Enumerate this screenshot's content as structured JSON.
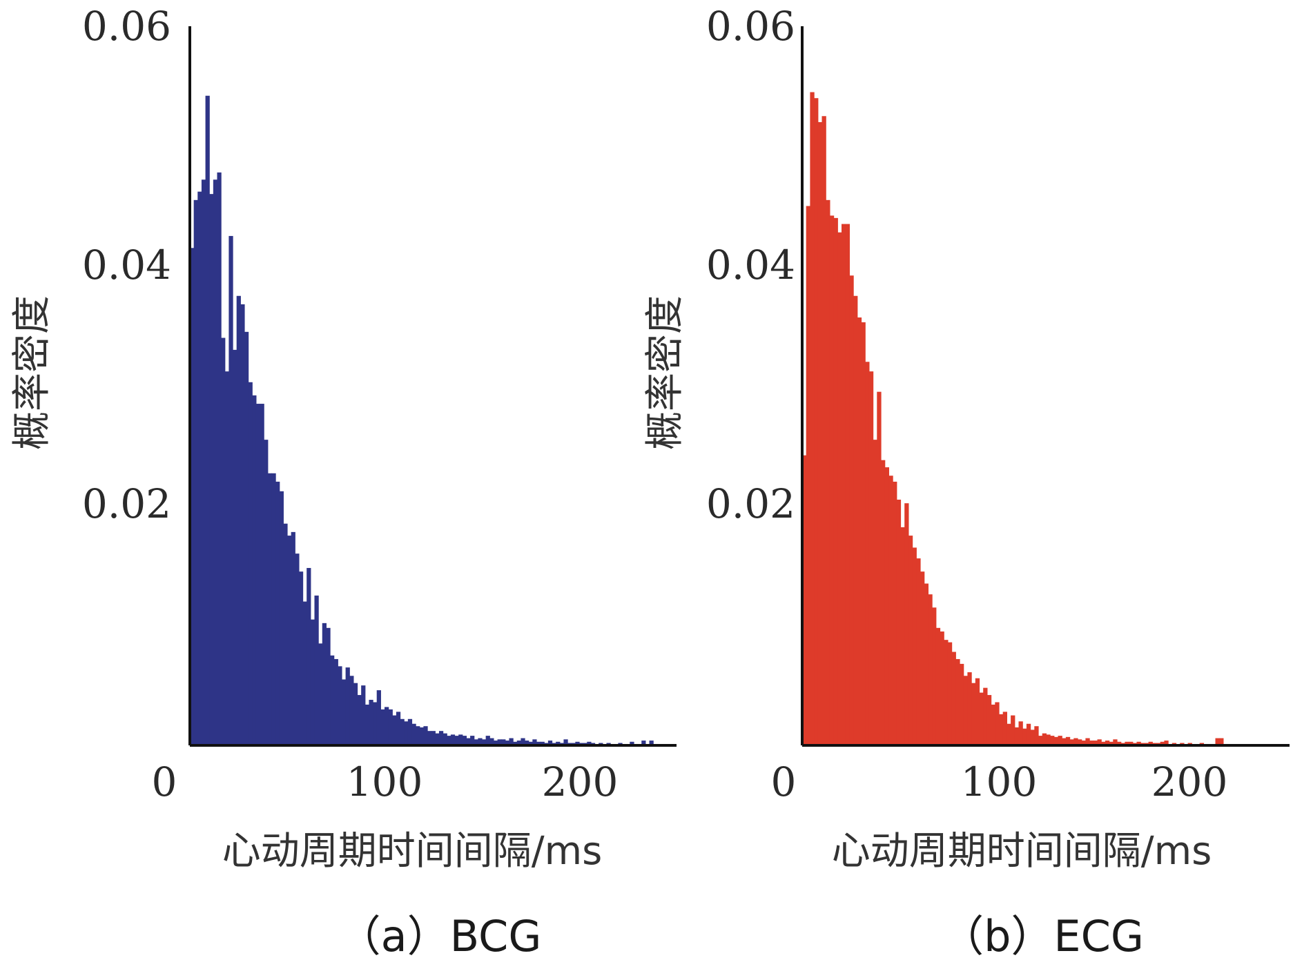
{
  "colors": {
    "bcg": "#2e3487",
    "ecg": "#de3b2a",
    "axis": "#111111",
    "text": "#2a2a2a"
  },
  "chart_data": [
    {
      "type": "bar",
      "caption": "（a）BCG",
      "title": "",
      "xlabel": "心动周期时间间隔/ms",
      "ylabel": "概率密度",
      "xlim": [
        0,
        250
      ],
      "ylim": [
        0,
        0.06
      ],
      "xticks": [
        "0",
        "100",
        "200"
      ],
      "xtick_values": [
        0,
        100,
        200
      ],
      "yticks": [
        "0.02",
        "0.04",
        "0.06"
      ],
      "ytick_values": [
        0.02,
        0.04,
        0.06
      ],
      "bin_width": 2,
      "x": [
        1,
        3,
        5,
        7,
        9,
        11,
        13,
        15,
        17,
        19,
        21,
        23,
        25,
        27,
        29,
        31,
        33,
        35,
        37,
        39,
        41,
        43,
        45,
        47,
        49,
        51,
        53,
        55,
        57,
        59,
        61,
        63,
        65,
        67,
        69,
        71,
        73,
        75,
        77,
        79,
        81,
        83,
        85,
        87,
        89,
        91,
        93,
        95,
        97,
        99,
        101,
        103,
        105,
        107,
        109,
        111,
        113,
        115,
        117,
        119,
        121,
        123,
        125,
        127,
        129,
        131,
        133,
        135,
        137,
        139,
        141,
        143,
        145,
        147,
        149,
        151,
        153,
        155,
        157,
        159,
        161,
        163,
        165,
        167,
        169,
        171,
        173,
        175,
        177,
        179,
        181,
        183,
        185,
        187,
        189,
        191,
        193,
        195,
        197,
        199,
        201,
        203,
        205,
        207,
        209,
        211,
        213,
        215,
        217,
        219,
        221,
        223,
        225,
        227,
        229,
        231,
        233,
        235,
        237,
        239
      ],
      "values": [
        0.0415,
        0.0455,
        0.0462,
        0.0472,
        0.0542,
        0.046,
        0.0472,
        0.0478,
        0.034,
        0.0312,
        0.0425,
        0.033,
        0.0375,
        0.0368,
        0.0345,
        0.0303,
        0.0292,
        0.0285,
        0.0285,
        0.0255,
        0.0227,
        0.0227,
        0.022,
        0.0212,
        0.0185,
        0.0175,
        0.0178,
        0.016,
        0.0145,
        0.012,
        0.0148,
        0.0105,
        0.0125,
        0.0085,
        0.0102,
        0.0098,
        0.0075,
        0.0072,
        0.0066,
        0.0055,
        0.0065,
        0.0058,
        0.0052,
        0.0042,
        0.005,
        0.0034,
        0.0038,
        0.0036,
        0.0046,
        0.003,
        0.0032,
        0.003,
        0.0025,
        0.0028,
        0.0022,
        0.002,
        0.0022,
        0.0018,
        0.0016,
        0.0015,
        0.0016,
        0.0012,
        0.0012,
        0.001,
        0.0012,
        0.001,
        0.0008,
        0.0009,
        0.0008,
        0.0009,
        0.0008,
        0.0006,
        0.0008,
        0.0005,
        0.0006,
        0.0005,
        0.0008,
        0.0006,
        0.0004,
        0.0005,
        0.0005,
        0.0004,
        0.0006,
        0.0003,
        0.0004,
        0.0006,
        0.0004,
        0.0003,
        0.0005,
        0.0003,
        0.0003,
        0.0002,
        0.0004,
        0.0002,
        0.0003,
        0.0002,
        0.0005,
        0.0002,
        0.0002,
        0.0003,
        0.0002,
        0.0002,
        0.0003,
        0.0002,
        0.0001,
        0.0002,
        0.0001,
        0.0002,
        0.0001,
        0.0001,
        0.0002,
        0.0001,
        0.0001,
        0.0003,
        0.0001,
        0.0001,
        0.0004,
        0.0001,
        0.0004,
        0.0001
      ]
    },
    {
      "type": "bar",
      "caption": "（b）ECG",
      "title": "",
      "xlabel": "心动周期时间间隔/ms",
      "ylabel": "概率密度",
      "xlim": [
        0,
        250
      ],
      "ylim": [
        0,
        0.06
      ],
      "xticks": [
        "0",
        "100",
        "200"
      ],
      "xtick_values": [
        0,
        100,
        200
      ],
      "yticks": [
        "0.02",
        "0.04",
        "0.06"
      ],
      "ytick_values": [
        0.02,
        0.04,
        0.06
      ],
      "bin_width": 2,
      "x": [
        1,
        3,
        5,
        7,
        9,
        11,
        13,
        15,
        17,
        19,
        21,
        23,
        25,
        27,
        29,
        31,
        33,
        35,
        37,
        39,
        41,
        43,
        45,
        47,
        49,
        51,
        53,
        55,
        57,
        59,
        61,
        63,
        65,
        67,
        69,
        71,
        73,
        75,
        77,
        79,
        81,
        83,
        85,
        87,
        89,
        91,
        93,
        95,
        97,
        99,
        101,
        103,
        105,
        107,
        109,
        111,
        113,
        115,
        117,
        119,
        121,
        123,
        125,
        127,
        129,
        131,
        133,
        135,
        137,
        139,
        141,
        143,
        145,
        147,
        149,
        151,
        153,
        155,
        157,
        159,
        161,
        163,
        165,
        167,
        169,
        171,
        173,
        175,
        177,
        179,
        181,
        183,
        185,
        187,
        189,
        191,
        193,
        195,
        197,
        199,
        201,
        203,
        205,
        207,
        209,
        211,
        213
      ],
      "values": [
        0.0242,
        0.045,
        0.0545,
        0.054,
        0.052,
        0.0525,
        0.0455,
        0.0442,
        0.044,
        0.0428,
        0.0435,
        0.0435,
        0.0392,
        0.0375,
        0.0357,
        0.0353,
        0.032,
        0.0312,
        0.0255,
        0.0295,
        0.0238,
        0.0232,
        0.0225,
        0.022,
        0.0205,
        0.0182,
        0.0202,
        0.0175,
        0.0165,
        0.0156,
        0.0145,
        0.0135,
        0.0126,
        0.0115,
        0.0098,
        0.0095,
        0.0088,
        0.0086,
        0.0078,
        0.0072,
        0.0068,
        0.0058,
        0.0061,
        0.0052,
        0.0056,
        0.0044,
        0.0048,
        0.0042,
        0.0034,
        0.0036,
        0.0026,
        0.0028,
        0.0018,
        0.0025,
        0.0015,
        0.002,
        0.0014,
        0.0018,
        0.0013,
        0.0016,
        0.0008,
        0.001,
        0.0009,
        0.0008,
        0.0007,
        0.0008,
        0.0006,
        0.0007,
        0.0005,
        0.0006,
        0.0005,
        0.0004,
        0.0006,
        0.0004,
        0.0004,
        0.0005,
        0.0003,
        0.0004,
        0.0003,
        0.0005,
        0.0003,
        0.0002,
        0.0003,
        0.0003,
        0.0002,
        0.0003,
        0.0002,
        0.0002,
        0.0003,
        0.0002,
        0.0002,
        0.0003,
        0.0004,
        0.0001,
        0.0002,
        0.0001,
        0.0002,
        0.0001,
        0.0002,
        0.0001,
        0.0001,
        0.0002,
        0.0001,
        0.0001,
        0.0001,
        0.0006,
        0.0006
      ]
    }
  ]
}
